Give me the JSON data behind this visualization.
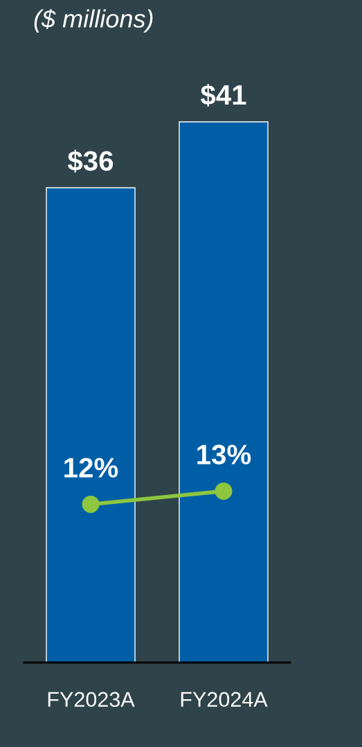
{
  "chart_data": {
    "type": "bar",
    "subtitle": "($ millions)",
    "categories": [
      "FY2023A",
      "FY2024A"
    ],
    "series": [
      {
        "color": "#005ea6",
        "values": [
          36,
          41
        ],
        "value_labels": [
          "$36",
          "$41"
        ]
      },
      {
        "type": "line",
        "color": "#8dc63f",
        "values": [
          12,
          13
        ],
        "value_labels": [
          "12%",
          "13%"
        ],
        "marker": "circle"
      }
    ],
    "grid": false,
    "legend": false
  }
}
